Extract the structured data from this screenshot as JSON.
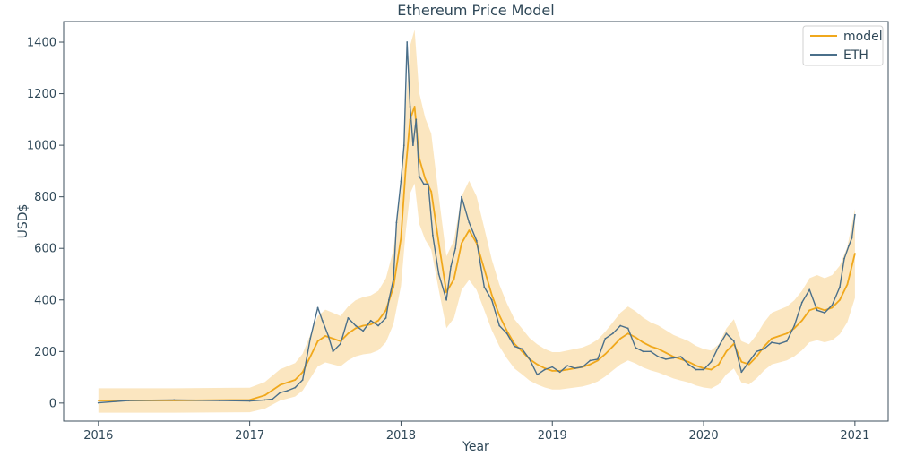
{
  "chart_data": {
    "type": "line",
    "title": "Ethereum Price Model",
    "xlabel": "Year",
    "ylabel": "USD$",
    "xlim": [
      2015.77,
      2021.22
    ],
    "ylim": [
      -70,
      1480
    ],
    "x_ticks": [
      2016,
      2017,
      2018,
      2019,
      2020,
      2021
    ],
    "y_ticks": [
      0,
      200,
      400,
      600,
      800,
      1000,
      1200,
      1400
    ],
    "grid": false,
    "legend_position": "top-right",
    "colors": {
      "eth": "#4a6f8a",
      "model": "#f0a81c",
      "band": "#f7c873",
      "axis": "#3d4f5c",
      "text": "#2f4858"
    },
    "legend": [
      {
        "label": "model",
        "color": "#f0a81c"
      },
      {
        "label": "ETH",
        "color": "#4a6f8a"
      }
    ],
    "series": [
      {
        "name": "ETH",
        "x": [
          2016.0,
          2016.2,
          2016.5,
          2016.8,
          2017.0,
          2017.1,
          2017.15,
          2017.2,
          2017.25,
          2017.3,
          2017.35,
          2017.4,
          2017.45,
          2017.48,
          2017.52,
          2017.55,
          2017.6,
          2017.65,
          2017.7,
          2017.75,
          2017.8,
          2017.85,
          2017.9,
          2017.92,
          2017.95,
          2017.97,
          2018.0,
          2018.02,
          2018.04,
          2018.06,
          2018.08,
          2018.1,
          2018.12,
          2018.15,
          2018.18,
          2018.21,
          2018.25,
          2018.3,
          2018.33,
          2018.36,
          2018.4,
          2018.45,
          2018.5,
          2018.55,
          2018.6,
          2018.65,
          2018.7,
          2018.75,
          2018.8,
          2018.85,
          2018.9,
          2018.95,
          2019.0,
          2019.05,
          2019.1,
          2019.15,
          2019.2,
          2019.25,
          2019.3,
          2019.35,
          2019.4,
          2019.45,
          2019.5,
          2019.55,
          2019.6,
          2019.65,
          2019.7,
          2019.75,
          2019.8,
          2019.85,
          2019.9,
          2019.95,
          2020.0,
          2020.05,
          2020.1,
          2020.15,
          2020.2,
          2020.25,
          2020.3,
          2020.35,
          2020.4,
          2020.45,
          2020.5,
          2020.55,
          2020.6,
          2020.65,
          2020.7,
          2020.75,
          2020.8,
          2020.85,
          2020.9,
          2020.93,
          2020.96,
          2020.98,
          2021.0
        ],
        "values": [
          1,
          10,
          12,
          10,
          8,
          12,
          15,
          40,
          48,
          60,
          90,
          250,
          370,
          320,
          260,
          200,
          230,
          330,
          300,
          280,
          320,
          300,
          330,
          400,
          480,
          700,
          860,
          1000,
          1400,
          1150,
          1000,
          1100,
          880,
          850,
          850,
          650,
          500,
          400,
          530,
          600,
          800,
          700,
          630,
          450,
          400,
          300,
          270,
          220,
          210,
          170,
          110,
          130,
          140,
          120,
          145,
          135,
          140,
          165,
          170,
          250,
          270,
          300,
          290,
          215,
          200,
          200,
          180,
          170,
          175,
          180,
          150,
          130,
          130,
          160,
          220,
          270,
          240,
          120,
          160,
          200,
          210,
          235,
          230,
          240,
          300,
          390,
          440,
          360,
          350,
          380,
          450,
          560,
          610,
          640,
          730
        ]
      },
      {
        "name": "model",
        "x": [
          2016.0,
          2016.5,
          2017.0,
          2017.1,
          2017.2,
          2017.3,
          2017.35,
          2017.4,
          2017.45,
          2017.5,
          2017.55,
          2017.6,
          2017.65,
          2017.7,
          2017.75,
          2017.8,
          2017.85,
          2017.9,
          2017.95,
          2018.0,
          2018.03,
          2018.06,
          2018.09,
          2018.12,
          2018.16,
          2018.2,
          2018.25,
          2018.3,
          2018.35,
          2018.4,
          2018.45,
          2018.5,
          2018.55,
          2018.6,
          2018.65,
          2018.7,
          2018.75,
          2018.8,
          2018.85,
          2018.9,
          2018.95,
          2019.0,
          2019.05,
          2019.1,
          2019.15,
          2019.2,
          2019.25,
          2019.3,
          2019.35,
          2019.4,
          2019.45,
          2019.5,
          2019.55,
          2019.6,
          2019.65,
          2019.7,
          2019.75,
          2019.8,
          2019.85,
          2019.9,
          2019.95,
          2020.0,
          2020.05,
          2020.1,
          2020.15,
          2020.2,
          2020.25,
          2020.3,
          2020.35,
          2020.4,
          2020.45,
          2020.5,
          2020.55,
          2020.6,
          2020.65,
          2020.7,
          2020.75,
          2020.8,
          2020.85,
          2020.9,
          2020.95,
          2021.0
        ],
        "values": [
          10,
          10,
          12,
          30,
          70,
          90,
          120,
          180,
          240,
          260,
          250,
          240,
          270,
          290,
          300,
          305,
          320,
          360,
          450,
          640,
          900,
          1100,
          1150,
          950,
          870,
          820,
          620,
          430,
          480,
          620,
          670,
          620,
          520,
          420,
          340,
          280,
          230,
          200,
          170,
          150,
          135,
          125,
          125,
          130,
          135,
          140,
          150,
          165,
          190,
          220,
          250,
          270,
          255,
          235,
          220,
          210,
          195,
          180,
          170,
          160,
          145,
          135,
          130,
          150,
          200,
          230,
          160,
          150,
          180,
          220,
          250,
          260,
          270,
          290,
          320,
          360,
          370,
          360,
          370,
          400,
          460,
          580
        ]
      }
    ]
  }
}
